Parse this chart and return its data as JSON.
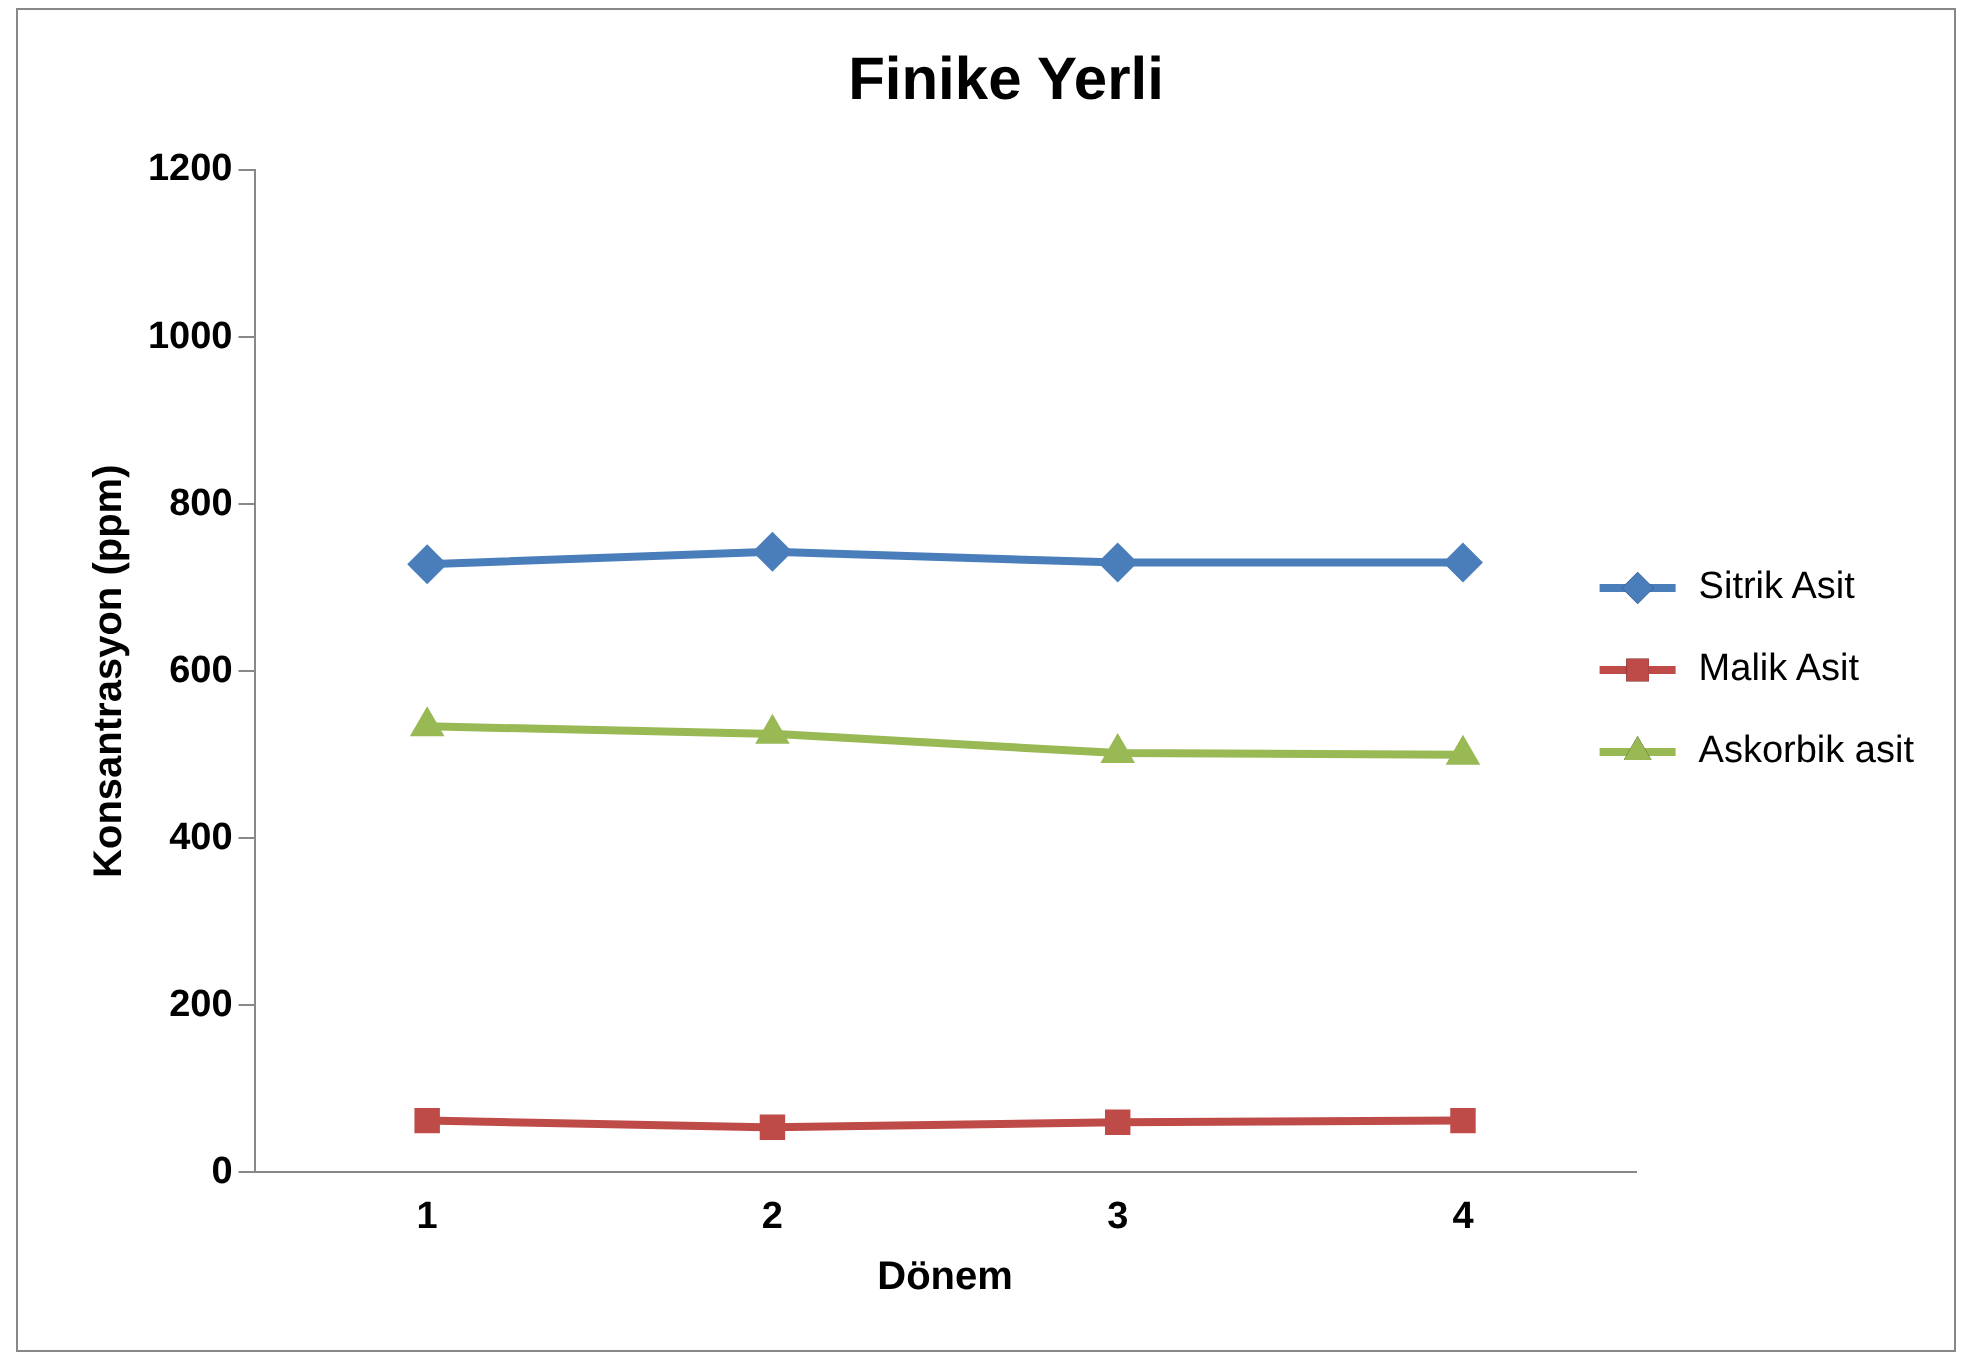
{
  "chart_data": {
    "type": "line",
    "title": "Finike Yerli",
    "xlabel": "Dönem",
    "ylabel": "Konsantrasyon (ppm)",
    "categories": [
      "1",
      "2",
      "3",
      "4"
    ],
    "series": [
      {
        "name": "Sitrik Asit",
        "color": "#4a7ebb",
        "marker": "diamond",
        "values": [
          728,
          743,
          730,
          730
        ]
      },
      {
        "name": "Malik Asit",
        "color": "#be4b48",
        "marker": "square",
        "values": [
          62,
          54,
          60,
          62
        ]
      },
      {
        "name": "Askorbik asit",
        "color": "#98b954",
        "marker": "triangle",
        "values": [
          534,
          525,
          502,
          500
        ]
      }
    ],
    "ylim": [
      0,
      1200
    ],
    "yticks": [
      0,
      200,
      400,
      600,
      800,
      1000,
      1200
    ],
    "grid": false,
    "legend": "right",
    "line_style": "solid"
  }
}
